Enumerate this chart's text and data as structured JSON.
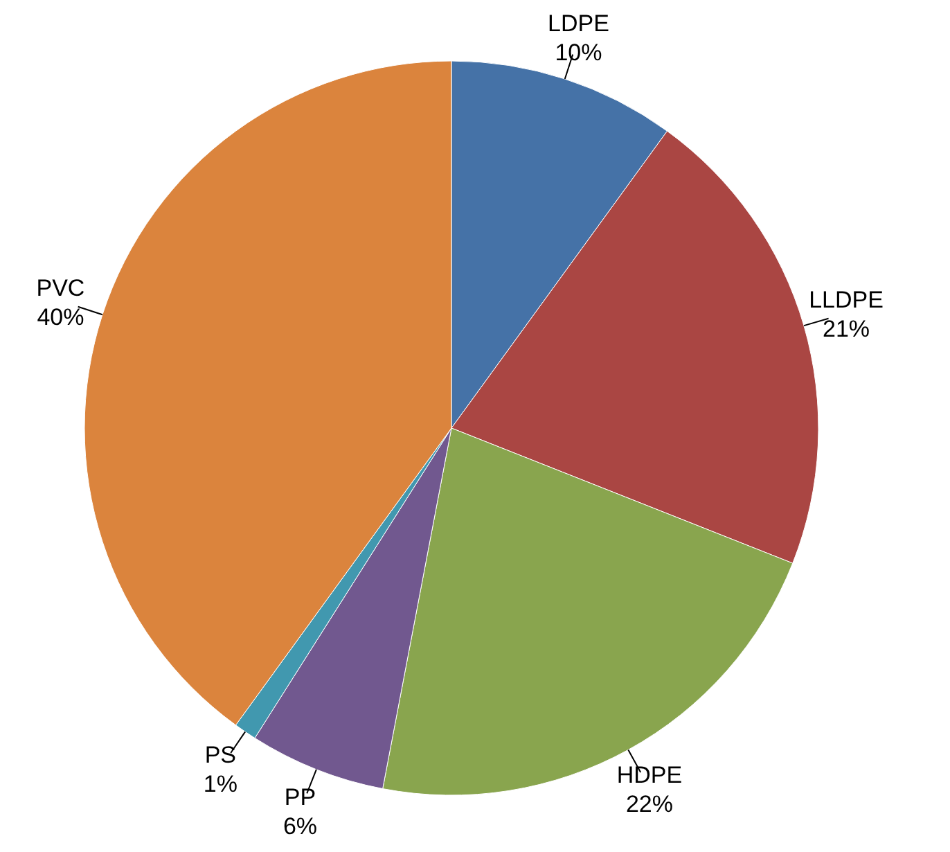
{
  "chart_data": {
    "type": "pie",
    "categories": [
      "LDPE",
      "LLDPE",
      "HDPE",
      "PP",
      "PS",
      "PVC"
    ],
    "values": [
      10,
      21,
      22,
      6,
      1,
      40
    ],
    "value_labels": [
      "10%",
      "21%",
      "22%",
      "6%",
      "1%",
      "40%"
    ],
    "colors": [
      "#4572a7",
      "#aa4643",
      "#89a54e",
      "#71588f",
      "#4198af",
      "#db843d"
    ]
  }
}
